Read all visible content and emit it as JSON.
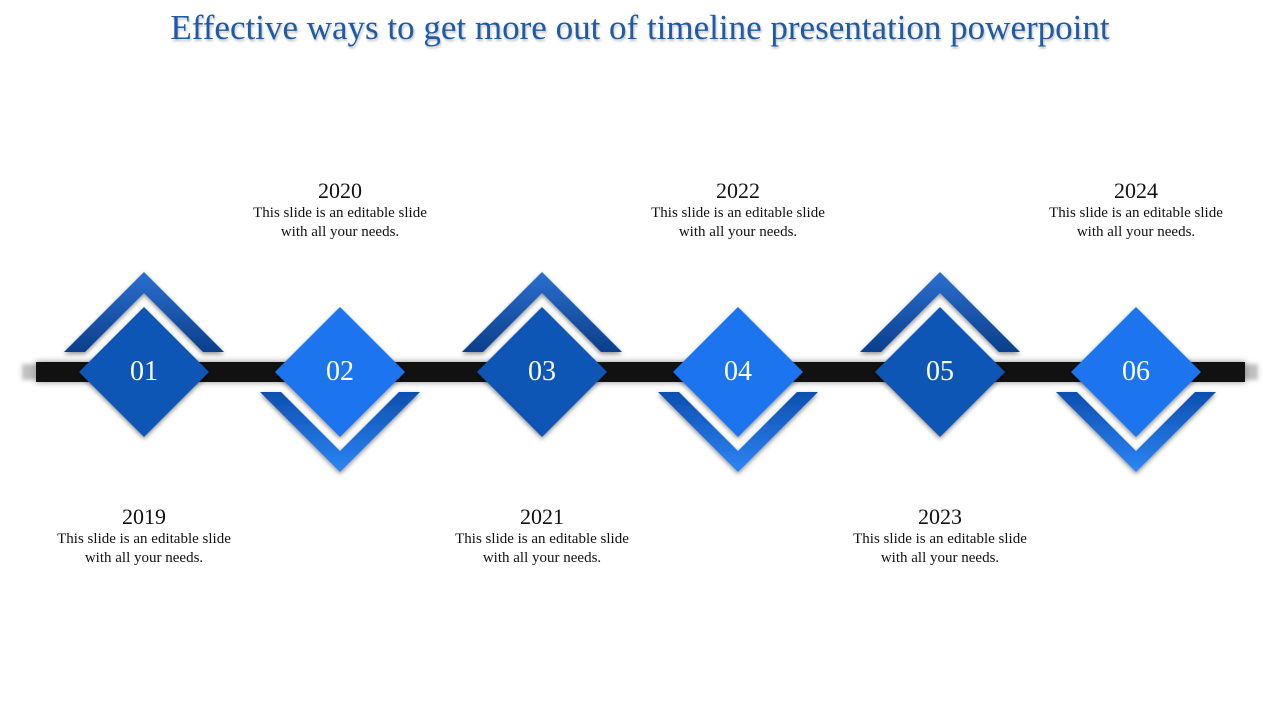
{
  "slide": {
    "title": "Effective ways to get more out of timeline presentation powerpoint"
  },
  "steps": [
    {
      "number": "01",
      "year": "2019",
      "line1": "This slide is an editable slide",
      "line2": "with all your needs.",
      "position": "below"
    },
    {
      "number": "02",
      "year": "2020",
      "line1": "This slide is an editable slide",
      "line2": "with all your needs.",
      "position": "above"
    },
    {
      "number": "03",
      "year": "2021",
      "line1": "This slide is an editable slide",
      "line2": "with all your needs.",
      "position": "below"
    },
    {
      "number": "04",
      "year": "2022",
      "line1": "This slide is an editable slide",
      "line2": "with all your needs.",
      "position": "above"
    },
    {
      "number": "05",
      "year": "2023",
      "line1": "This slide is an editable slide",
      "line2": "with all your needs.",
      "position": "below"
    },
    {
      "number": "06",
      "year": "2024",
      "line1": "This slide is an editable slide",
      "line2": "with all your needs.",
      "position": "above"
    }
  ],
  "colors": {
    "title": "#1F5AA6",
    "dark_blue": "#0F56B5",
    "bright_blue": "#1A75EE",
    "bar": "#111111"
  }
}
